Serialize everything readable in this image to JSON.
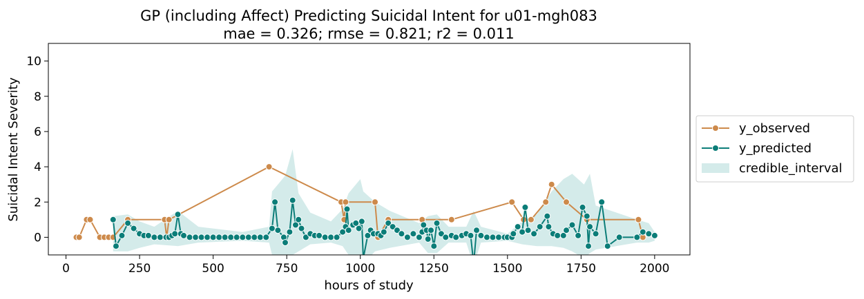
{
  "chart_data": {
    "type": "line",
    "title": "GP (including Affect) Predicting Suicidal Intent for u01-mgh083",
    "subtitle": "mae = 0.326; rmse = 0.821; r2 = 0.011",
    "xlabel": "hours of study",
    "ylabel": "Suicidal Intent Severity",
    "xlim": [
      -60,
      2120
    ],
    "ylim": [
      -1,
      11
    ],
    "xticks": [
      0,
      250,
      500,
      750,
      1000,
      1250,
      1500,
      1750,
      2000
    ],
    "yticks": [
      0,
      2,
      4,
      6,
      8,
      10
    ],
    "grid": false,
    "legend_position": "outside-right",
    "colors": {
      "observed": "#cd8a4b",
      "predicted": "#0b7d78",
      "interval": "#9fd2d0"
    },
    "legend": [
      "y_observed",
      "y_predicted",
      "credible_interval"
    ],
    "series": [
      {
        "name": "y_observed",
        "x": [
          35,
          45,
          70,
          82,
          115,
          130,
          145,
          160,
          210,
          335,
          342,
          350,
          690,
          935,
          945,
          950,
          1050,
          1060,
          1095,
          1210,
          1310,
          1515,
          1555,
          1580,
          1630,
          1650,
          1700,
          1770,
          1945,
          1960
        ],
        "y": [
          0,
          0,
          1,
          1,
          0,
          0,
          0,
          0,
          1,
          1,
          0,
          1,
          4,
          2,
          1,
          2,
          2,
          0,
          1,
          1,
          1,
          2,
          1,
          1,
          2,
          3,
          2,
          1,
          1,
          0
        ]
      },
      {
        "name": "y_predicted",
        "x": [
          160,
          170,
          190,
          210,
          230,
          250,
          265,
          280,
          300,
          320,
          340,
          350,
          360,
          370,
          380,
          390,
          400,
          420,
          440,
          460,
          480,
          500,
          520,
          540,
          560,
          580,
          600,
          620,
          640,
          660,
          680,
          700,
          710,
          720,
          740,
          745,
          760,
          770,
          780,
          790,
          800,
          815,
          830,
          845,
          860,
          880,
          900,
          920,
          940,
          950,
          955,
          960,
          975,
          985,
          995,
          1005,
          1010,
          1025,
          1035,
          1045,
          1060,
          1070,
          1080,
          1095,
          1110,
          1125,
          1140,
          1160,
          1180,
          1200,
          1210,
          1215,
          1225,
          1230,
          1240,
          1250,
          1260,
          1275,
          1290,
          1310,
          1325,
          1345,
          1360,
          1375,
          1385,
          1395,
          1410,
          1430,
          1450,
          1470,
          1490,
          1500,
          1515,
          1520,
          1535,
          1550,
          1560,
          1570,
          1590,
          1610,
          1635,
          1640,
          1655,
          1670,
          1690,
          1700,
          1720,
          1740,
          1755,
          1770,
          1775,
          1780,
          1800,
          1820,
          1840,
          1880,
          1940,
          1960,
          1980,
          2000
        ],
        "y": [
          1.0,
          -0.5,
          0.1,
          0.8,
          0.5,
          0.2,
          0.1,
          0.1,
          0.0,
          0.0,
          0.0,
          0.0,
          0.1,
          0.2,
          1.3,
          0.2,
          0.1,
          0.0,
          0.0,
          0.0,
          0.0,
          0.0,
          0.0,
          0.0,
          0.0,
          0.0,
          0.0,
          0.0,
          0.0,
          0.0,
          0.0,
          0.5,
          2.0,
          0.4,
          0.0,
          -0.3,
          0.3,
          2.1,
          0.7,
          1.0,
          0.5,
          0.0,
          0.2,
          0.1,
          0.1,
          0.0,
          0.0,
          0.0,
          0.3,
          0.6,
          1.6,
          0.4,
          0.7,
          0.8,
          0.5,
          0.9,
          -1.2,
          0.1,
          0.4,
          0.2,
          0.2,
          0.1,
          0.3,
          0.8,
          0.6,
          0.4,
          0.2,
          0.0,
          0.2,
          0.0,
          0.3,
          0.7,
          0.4,
          -0.1,
          0.4,
          -0.5,
          0.8,
          0.2,
          0.0,
          0.1,
          0.0,
          0.1,
          0.2,
          0.1,
          -1.5,
          0.4,
          0.1,
          0.0,
          0.0,
          0.0,
          0.0,
          0.0,
          0.0,
          0.2,
          0.6,
          0.3,
          1.7,
          0.4,
          0.2,
          0.6,
          1.2,
          0.6,
          0.2,
          0.1,
          0.1,
          0.4,
          0.7,
          0.1,
          1.7,
          1.2,
          -0.5,
          0.6,
          0.2,
          2.0,
          -0.5,
          0.0,
          0.0,
          0.3,
          0.2,
          0.1
        ]
      },
      {
        "name": "credible_interval",
        "x": [
          160,
          210,
          250,
          300,
          380,
          450,
          600,
          690,
          700,
          720,
          745,
          770,
          790,
          830,
          900,
          940,
          960,
          1000,
          1010,
          1050,
          1100,
          1200,
          1230,
          1260,
          1300,
          1360,
          1385,
          1410,
          1500,
          1550,
          1600,
          1650,
          1690,
          1720,
          1760,
          1780,
          1800,
          1940,
          1980,
          2000
        ],
        "lower": [
          -0.8,
          -0.8,
          -0.6,
          -0.4,
          -0.5,
          -0.3,
          -0.2,
          -0.3,
          -1.0,
          -1.2,
          -1.3,
          -1.0,
          -0.8,
          -0.4,
          -0.3,
          -0.5,
          -1.0,
          -1.1,
          -1.5,
          -0.8,
          -0.6,
          -0.3,
          -0.9,
          -0.9,
          -0.3,
          -0.3,
          -1.6,
          -0.3,
          -0.2,
          -0.4,
          -0.5,
          -0.5,
          -0.6,
          -0.8,
          -1.2,
          -0.9,
          -0.7,
          -0.3,
          -0.3,
          -0.2
        ],
        "upper": [
          1.2,
          1.3,
          0.9,
          0.6,
          1.5,
          0.6,
          0.3,
          0.6,
          2.6,
          3.0,
          3.5,
          5.0,
          2.5,
          1.4,
          0.9,
          1.6,
          2.5,
          3.3,
          2.6,
          2.0,
          1.5,
          0.8,
          1.2,
          1.3,
          0.6,
          0.6,
          1.5,
          0.6,
          0.2,
          0.9,
          1.3,
          2.6,
          3.3,
          3.6,
          3.0,
          3.6,
          1.8,
          1.0,
          0.8,
          0.3
        ]
      }
    ]
  }
}
